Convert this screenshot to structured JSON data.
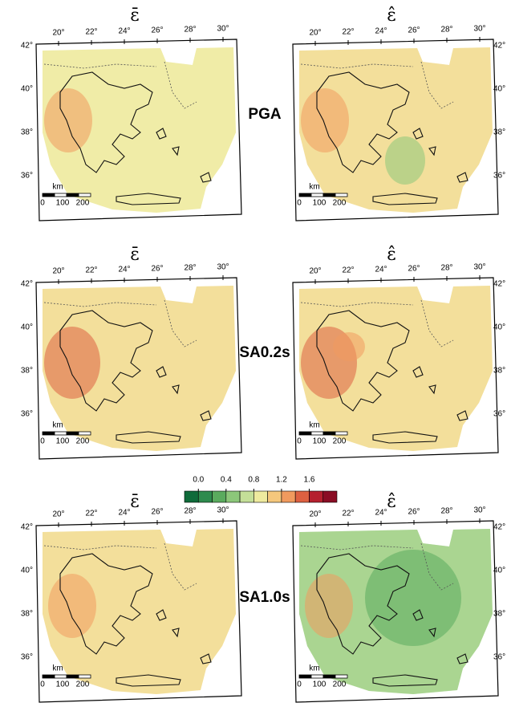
{
  "columns": [
    {
      "title": "ε̄"
    },
    {
      "title": "ε̂"
    }
  ],
  "rows": [
    {
      "label": "PGA"
    },
    {
      "label": "SA0.2s"
    },
    {
      "label": "SA1.0s"
    }
  ],
  "lon_labels": [
    "20°",
    "22°",
    "24°",
    "26°",
    "28°",
    "30°"
  ],
  "lat_labels": [
    "42°",
    "40°",
    "38°",
    "36°"
  ],
  "scale": {
    "unit": "km",
    "ticks": [
      "0",
      "100",
      "200"
    ]
  },
  "colorbar": {
    "ticks": [
      "0.0",
      "0.4",
      "0.8",
      "1.2",
      "1.6"
    ],
    "colors": [
      "#0f6b3a",
      "#2e8b4e",
      "#5aab5e",
      "#8cc77a",
      "#c4df98",
      "#eeea9e",
      "#f5c77c",
      "#f09a5e",
      "#dd6041",
      "#b5202e",
      "#8a0d24"
    ]
  }
}
